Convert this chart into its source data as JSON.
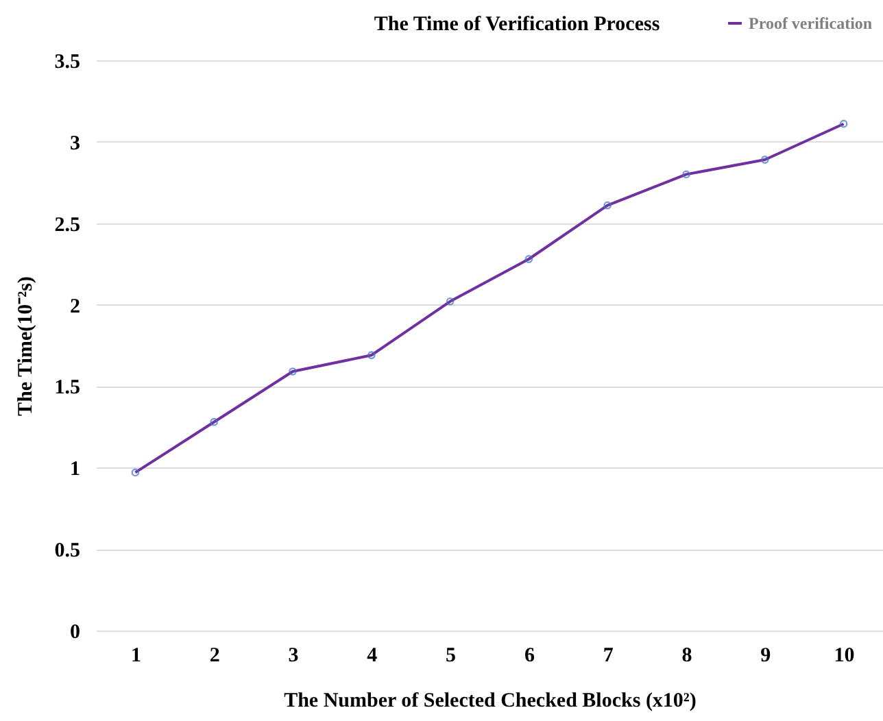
{
  "chart_data": {
    "type": "line",
    "title": "The Time of Verification Process",
    "xlabel": "The Number of Selected Checked Blocks (x10²)",
    "ylabel": "The Time(10⁻²s)",
    "categories": [
      "1",
      "2",
      "3",
      "4",
      "5",
      "6",
      "7",
      "8",
      "9",
      "10"
    ],
    "series": [
      {
        "name": "Proof verification",
        "color": "#7030a0",
        "values": [
          0.97,
          1.28,
          1.59,
          1.69,
          2.02,
          2.28,
          2.61,
          2.8,
          2.89,
          3.11
        ]
      }
    ],
    "ylim": [
      0,
      3.5
    ],
    "yticks": [
      0,
      0.5,
      1,
      1.5,
      2,
      2.5,
      3,
      3.5
    ],
    "grid": "y",
    "legend": "top",
    "marker": "circle",
    "line_style": "solid"
  }
}
